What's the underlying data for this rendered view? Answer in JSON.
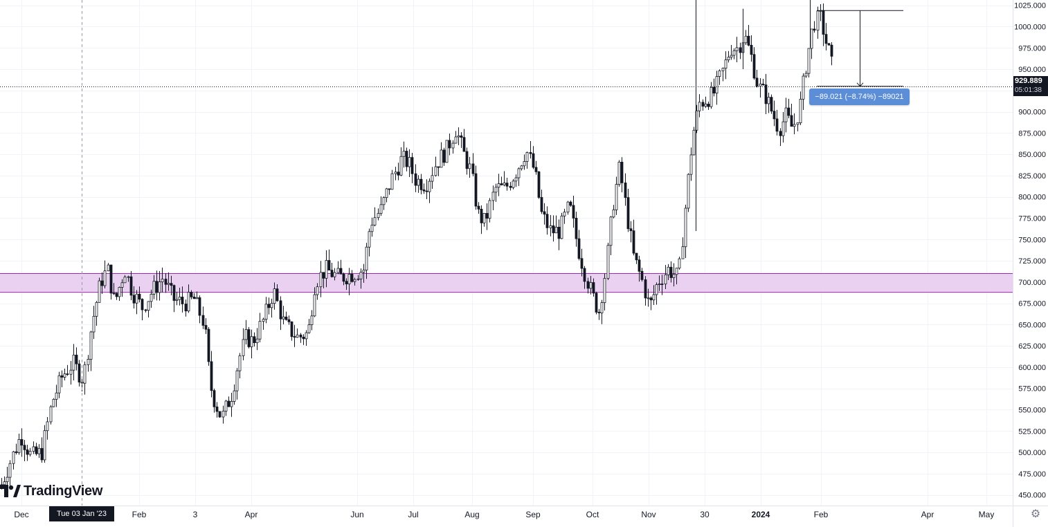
{
  "chart_data": {
    "type": "candlestick",
    "ylim": [
      437.5,
      1031.25
    ],
    "y_ticks": [
      "1025.000",
      "1000.000",
      "975.000",
      "950.000",
      "925.000",
      "900.000",
      "875.000",
      "850.000",
      "825.000",
      "800.000",
      "775.000",
      "750.000",
      "725.000",
      "700.000",
      "675.000",
      "650.000",
      "625.000",
      "600.000",
      "575.000",
      "550.000",
      "525.000",
      "500.000",
      "475.000",
      "450.000"
    ],
    "x_ticks": [
      "Dec",
      "Feb",
      "3",
      "Apr",
      "Jun",
      "Jul",
      "Aug",
      "Sep",
      "Oct",
      "Nov",
      "30",
      "2024",
      "Feb",
      "Apr",
      "May"
    ],
    "x_tick_values": [
      31,
      201,
      282,
      363,
      516,
      597,
      682,
      770,
      856,
      937,
      1018,
      1099,
      1186,
      1340,
      1425
    ],
    "bold_x_ticks": [
      "2024"
    ],
    "crosshair_label": "Tue 03 Jan '23",
    "current_price": "929.889",
    "countdown": "05:01:38",
    "support_zone": {
      "low": 688,
      "high": 710,
      "color": "#9c27b0"
    },
    "measure": {
      "from": 1018.9,
      "to": 929.9,
      "label": "−89.021 (−8.74%) −89021"
    },
    "colors": {
      "up": "#ffffff",
      "down": "#131722",
      "grid": "#f0f3fa",
      "zone_fill": "#e7c9ef",
      "zone_line": "#9c27b0",
      "measure": "#5b8ed6"
    },
    "anchors": [
      [
        0,
        458
      ],
      [
        15,
        490
      ],
      [
        30,
        520
      ],
      [
        45,
        495
      ],
      [
        60,
        500
      ],
      [
        75,
        560
      ],
      [
        90,
        590
      ],
      [
        105,
        605
      ],
      [
        120,
        585
      ],
      [
        132,
        650
      ],
      [
        145,
        700
      ],
      [
        155,
        715
      ],
      [
        165,
        675
      ],
      [
        180,
        715
      ],
      [
        190,
        690
      ],
      [
        205,
        670
      ],
      [
        220,
        690
      ],
      [
        235,
        705
      ],
      [
        250,
        680
      ],
      [
        265,
        675
      ],
      [
        280,
        680
      ],
      [
        295,
        650
      ],
      [
        303,
        580
      ],
      [
        310,
        560
      ],
      [
        320,
        540
      ],
      [
        335,
        570
      ],
      [
        345,
        610
      ],
      [
        355,
        635
      ],
      [
        365,
        630
      ],
      [
        380,
        655
      ],
      [
        395,
        690
      ],
      [
        410,
        650
      ],
      [
        430,
        635
      ],
      [
        445,
        640
      ],
      [
        455,
        700
      ],
      [
        470,
        715
      ],
      [
        490,
        705
      ],
      [
        510,
        710
      ],
      [
        525,
        715
      ],
      [
        535,
        770
      ],
      [
        550,
        785
      ],
      [
        565,
        820
      ],
      [
        580,
        845
      ],
      [
        590,
        840
      ],
      [
        600,
        820
      ],
      [
        615,
        815
      ],
      [
        630,
        840
      ],
      [
        645,
        855
      ],
      [
        658,
        880
      ],
      [
        670,
        850
      ],
      [
        680,
        830
      ],
      [
        690,
        780
      ],
      [
        700,
        770
      ],
      [
        715,
        810
      ],
      [
        730,
        810
      ],
      [
        745,
        830
      ],
      [
        760,
        855
      ],
      [
        772,
        830
      ],
      [
        782,
        780
      ],
      [
        795,
        760
      ],
      [
        808,
        760
      ],
      [
        822,
        790
      ],
      [
        835,
        740
      ],
      [
        845,
        710
      ],
      [
        855,
        685
      ],
      [
        865,
        665
      ],
      [
        875,
        715
      ],
      [
        885,
        790
      ],
      [
        895,
        835
      ],
      [
        905,
        780
      ],
      [
        915,
        730
      ],
      [
        928,
        700
      ],
      [
        938,
        670
      ],
      [
        950,
        700
      ],
      [
        965,
        715
      ],
      [
        980,
        705
      ],
      [
        990,
        790
      ],
      [
        1000,
        870
      ],
      [
        1010,
        910
      ],
      [
        1020,
        915
      ],
      [
        1030,
        920
      ],
      [
        1045,
        950
      ],
      [
        1055,
        975
      ],
      [
        1065,
        975
      ],
      [
        1075,
        990
      ],
      [
        1085,
        965
      ],
      [
        1095,
        930
      ],
      [
        1105,
        920
      ],
      [
        1115,
        900
      ],
      [
        1125,
        880
      ],
      [
        1135,
        895
      ],
      [
        1145,
        880
      ],
      [
        1155,
        905
      ],
      [
        1165,
        960
      ],
      [
        1175,
        1005
      ],
      [
        1185,
        1010
      ],
      [
        1195,
        975
      ],
      [
        1200,
        965
      ],
      [
        1205,
        930
      ]
    ]
  }
}
